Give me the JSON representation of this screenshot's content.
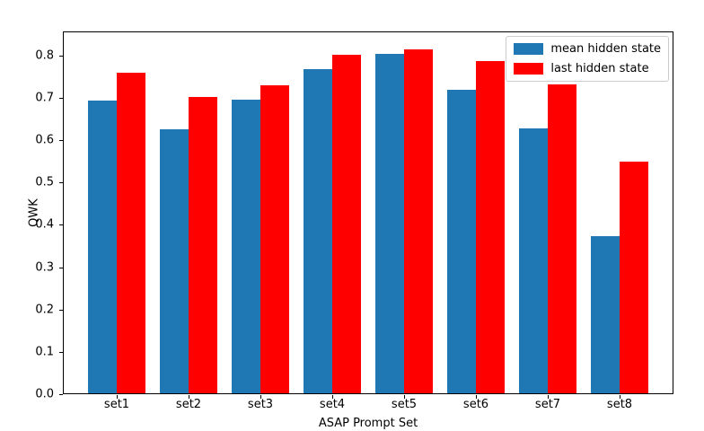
{
  "figure": {
    "background": "#ffffff",
    "axes_edge_color": "#000000"
  },
  "chart_data": {
    "type": "bar",
    "title": "",
    "xlabel": "ASAP Prompt Set",
    "ylabel": "QWK",
    "categories": [
      "set1",
      "set2",
      "set3",
      "set4",
      "set5",
      "set6",
      "set7",
      "set8"
    ],
    "series": [
      {
        "name": "mean hidden state",
        "color": "#1f77b4",
        "values": [
          0.693,
          0.626,
          0.696,
          0.767,
          0.804,
          0.72,
          0.627,
          0.373
        ]
      },
      {
        "name": "last hidden state",
        "color": "#ff0000",
        "values": [
          0.76,
          0.702,
          0.73,
          0.801,
          0.814,
          0.788,
          0.731,
          0.549
        ]
      }
    ],
    "yticks": [
      "0.0",
      "0.1",
      "0.2",
      "0.3",
      "0.4",
      "0.5",
      "0.6",
      "0.7",
      "0.8"
    ],
    "ylim": [
      0,
      0.857
    ],
    "x_range": [
      -0.75,
      7.75
    ],
    "bar_width_data": 0.4,
    "grid": false,
    "legend_position": "upper right"
  }
}
